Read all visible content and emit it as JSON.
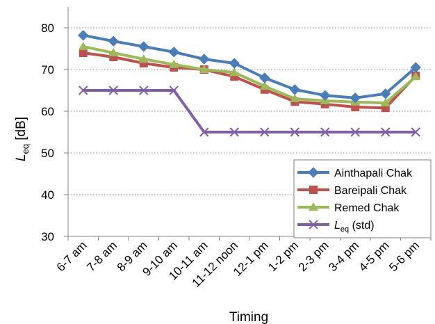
{
  "chart_data": {
    "type": "line",
    "categories": [
      "6-7 am",
      "7-8 am",
      "8-9 am",
      "9-10 am",
      "10-11 am",
      "11-12 noon",
      "12-1 pm",
      "1-2 pm",
      "2-3 pm",
      "3-4 pm",
      "4-5 pm",
      "5-6 pm"
    ],
    "series": [
      {
        "name": "Ainthapali Chak",
        "color": "#4a7ebb",
        "marker": "diamond",
        "values": [
          78.2,
          76.8,
          75.5,
          74.2,
          72.5,
          71.5,
          68.0,
          65.2,
          63.8,
          63.2,
          64.2,
          70.5
        ]
      },
      {
        "name": "Bareipali Chak",
        "color": "#c0504d",
        "marker": "square",
        "values": [
          74.0,
          73.0,
          71.5,
          70.5,
          70.0,
          68.3,
          65.2,
          62.3,
          61.7,
          61.0,
          60.8,
          68.5
        ]
      },
      {
        "name": "Remed Chak",
        "color": "#9bbb59",
        "marker": "triangle",
        "values": [
          75.5,
          74.0,
          72.5,
          71.2,
          70.0,
          69.3,
          66.0,
          63.0,
          62.5,
          62.2,
          62.0,
          68.3
        ]
      },
      {
        "name": "std",
        "color": "#7f5fa8",
        "marker": "x",
        "values": [
          65,
          65,
          65,
          65,
          55,
          55,
          55,
          55,
          55,
          55,
          55,
          55
        ]
      }
    ],
    "std_legend": {
      "symbol": "L",
      "subscript": "eq",
      "suffix": "(std)"
    },
    "y_axis": {
      "symbol": "L",
      "subscript": "eq",
      "unit": "[dB]",
      "ticks": [
        30,
        40,
        50,
        60,
        70,
        80
      ]
    },
    "xlabel": "Timing",
    "ylim": [
      30,
      85
    ],
    "grid": "horizontal dotted",
    "legend_position": "bottom-right"
  }
}
